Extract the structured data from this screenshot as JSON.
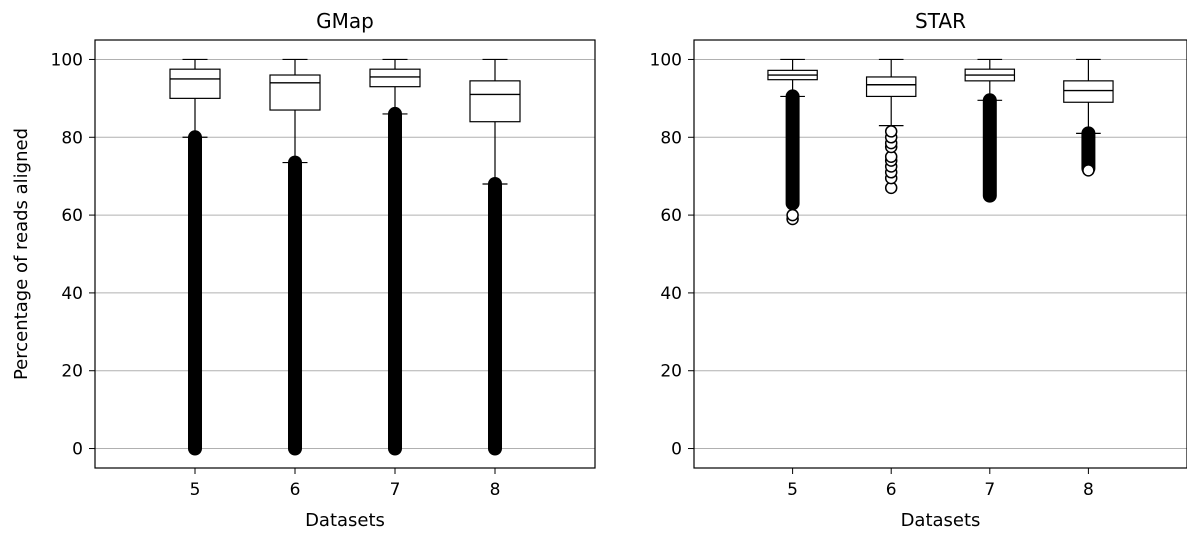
{
  "chart_data": [
    {
      "type": "box",
      "title": "GMap",
      "xlabel": "Datasets",
      "ylabel": "Percentage of reads aligned",
      "categories": [
        "5",
        "6",
        "7",
        "8"
      ],
      "ylim": [
        -5,
        105
      ],
      "yticks": [
        0,
        20,
        40,
        60,
        80,
        100
      ],
      "grid": "horizontal",
      "boxes": [
        {
          "category": "5",
          "whislo": 80,
          "q1": 90,
          "med": 95,
          "q3": 97.5,
          "whishi": 100,
          "fliers_range": [
            0,
            80
          ]
        },
        {
          "category": "6",
          "whislo": 73.5,
          "q1": 87,
          "med": 94,
          "q3": 96,
          "whishi": 100,
          "fliers_range": [
            0,
            73.5
          ]
        },
        {
          "category": "7",
          "whislo": 86,
          "q1": 93,
          "med": 95.5,
          "q3": 97.5,
          "whishi": 100,
          "fliers_range": [
            0,
            86
          ]
        },
        {
          "category": "8",
          "whislo": 68,
          "q1": 84,
          "med": 91,
          "q3": 94.5,
          "whishi": 100,
          "fliers_range": [
            0,
            68
          ]
        }
      ]
    },
    {
      "type": "box",
      "title": "STAR",
      "xlabel": "Datasets",
      "ylabel": "",
      "categories": [
        "5",
        "6",
        "7",
        "8"
      ],
      "ylim": [
        -5,
        105
      ],
      "yticks": [
        0,
        20,
        40,
        60,
        80,
        100
      ],
      "grid": "horizontal",
      "boxes": [
        {
          "category": "5",
          "whislo": 90.5,
          "q1": 94.8,
          "med": 96,
          "q3": 97.2,
          "whishi": 100,
          "fliers_range": [
            63,
            90.5
          ],
          "fliers": [
            59,
            60
          ]
        },
        {
          "category": "6",
          "whislo": 83,
          "q1": 90.5,
          "med": 93.5,
          "q3": 95.5,
          "whishi": 100,
          "fliers": [
            67,
            69.5,
            71,
            72.5,
            74,
            75,
            77.5,
            78.5,
            80,
            81.5
          ]
        },
        {
          "category": "7",
          "whislo": 89.5,
          "q1": 94.5,
          "med": 96,
          "q3": 97.5,
          "whishi": 100,
          "fliers_range": [
            65,
            89.5
          ]
        },
        {
          "category": "8",
          "whislo": 81,
          "q1": 89,
          "med": 92,
          "q3": 94.5,
          "whishi": 100,
          "fliers_range": [
            72,
            81
          ],
          "fliers": [
            71.5
          ]
        }
      ]
    }
  ]
}
